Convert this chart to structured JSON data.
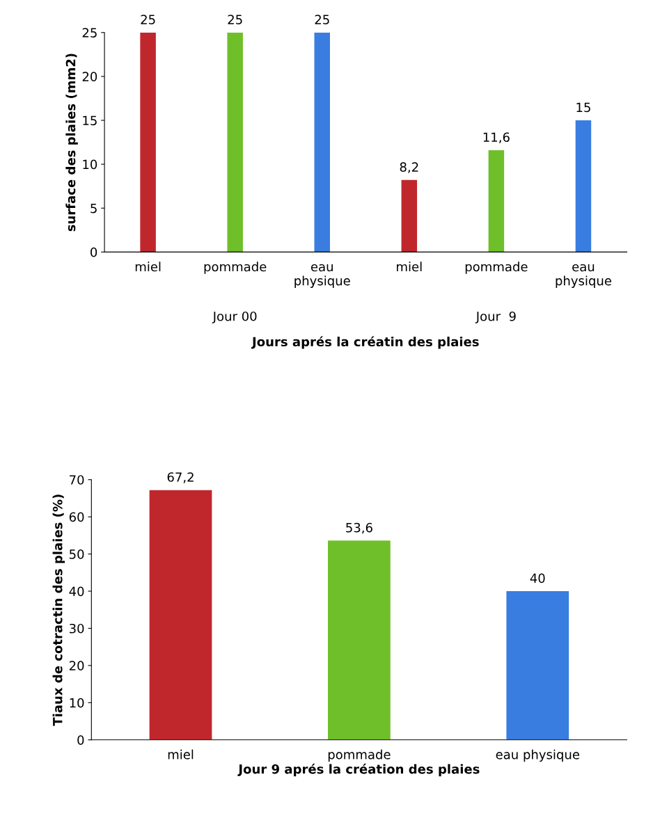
{
  "chart_data": [
    {
      "type": "bar",
      "ylabel": "surface des plaies (mm2)",
      "xlabel": "Jours aprés la créatin des plaies",
      "categories": [
        "miel",
        "pommade",
        "eau\nphysique",
        "miel",
        "pommade",
        "eau\nphysique"
      ],
      "values": [
        25,
        25,
        25,
        8.2,
        11.6,
        15
      ],
      "colors": [
        "#c0272d",
        "#6fbf2a",
        "#3a7de0",
        "#c0272d",
        "#6fbf2a",
        "#3a7de0"
      ],
      "value_labels": [
        "25",
        "25",
        "25",
        "8,2",
        "11,6",
        "15"
      ],
      "annotations": [
        "Jour 00",
        "Jour  9"
      ],
      "ylim": [
        0,
        25
      ],
      "yticks": [
        0,
        5,
        10,
        15,
        20,
        25
      ],
      "grid": false
    },
    {
      "type": "bar",
      "ylabel": "Tiaux de cotractin des plaies (%)",
      "xlabel": "Jour 9 aprés la création des plaies",
      "categories": [
        "miel",
        "pommade",
        "eau physique"
      ],
      "values": [
        67.2,
        53.6,
        40
      ],
      "colors": [
        "#c0272d",
        "#6fbf2a",
        "#3a7de0"
      ],
      "value_labels": [
        "67,2",
        "53,6",
        "40"
      ],
      "ylim": [
        0,
        70
      ],
      "yticks": [
        0,
        10,
        20,
        30,
        40,
        50,
        60,
        70
      ],
      "grid": false
    }
  ]
}
